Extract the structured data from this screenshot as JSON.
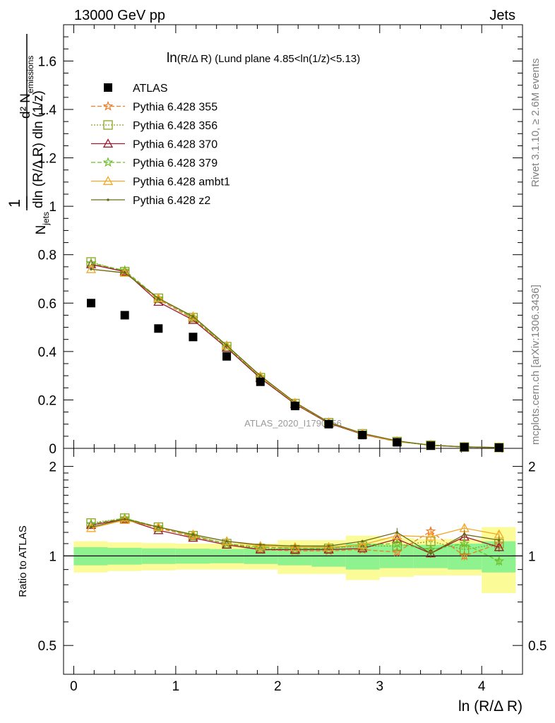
{
  "header": {
    "left": "13000 GeV pp",
    "right": "Jets"
  },
  "side_labels": {
    "rivet": "Rivet 3.1.10, ≥ 2.6M events",
    "mcplots": "mcplots.cern.ch [arXiv:1306.3436]"
  },
  "watermark": "ATLAS_2020_I1790256",
  "plot_title": {
    "main": "ln",
    "sub": "(R/Δ R)",
    "rest": " (Lund plane 4.85<ln(1/z)<5.13)"
  },
  "ylabel_main": {
    "frac_top": "1",
    "n_jets": "N",
    "n_jets_sub": "jets",
    "denom_rest": "dln (R/Δ R) dln (1/z)",
    "num_d2": "d² N",
    "num_sub": "emissions"
  },
  "ylabel_ratio": "Ratio to ATLAS",
  "xlabel": "ln (R/Δ R)",
  "colors": {
    "atlas": "#000000",
    "p355": "#f07c28",
    "p356": "#8aa522",
    "p370": "#9b1b30",
    "p379": "#6cbf2a",
    "ambt1": "#f5a623",
    "z2": "#6b6b14",
    "band_inner": "#8ef28e",
    "band_outer": "#fbfb98"
  },
  "chart_data": {
    "type": "scatter",
    "xlabel": "ln (R/Δ R)",
    "ylabel": "d²N_emissions / (N_jets dln(R/ΔR) dln(1/z))",
    "ratio_ylabel": "Ratio to ATLAS",
    "xlim": [
      -0.1,
      4.4
    ],
    "ylim": [
      0,
      1.75
    ],
    "ratio_ylim": [
      0.4,
      2.3
    ],
    "ratio_log": true,
    "x_ticks": [
      "0",
      "1",
      "2",
      "3",
      "4"
    ],
    "y_ticks": [
      "0",
      "0.2",
      "0.4",
      "0.6",
      "0.8",
      "1",
      "1.2",
      "1.4",
      "1.6"
    ],
    "ratio_ticks": [
      "0.5",
      "1",
      "2"
    ],
    "x": [
      0.17,
      0.5,
      0.83,
      1.17,
      1.5,
      1.83,
      2.17,
      2.5,
      2.83,
      3.17,
      3.5,
      3.83,
      4.17
    ],
    "bin_edges": [
      0,
      0.333,
      0.667,
      1.0,
      1.333,
      1.667,
      2.0,
      2.333,
      2.667,
      3.0,
      3.333,
      3.667,
      4.0,
      4.333
    ],
    "legend_position": "upper-left",
    "atlas": {
      "name": "ATLAS",
      "values": [
        0.6,
        0.55,
        0.495,
        0.46,
        0.38,
        0.275,
        0.175,
        0.1,
        0.055,
        0.025,
        0.011,
        0.005,
        0.003
      ],
      "band_inner": [
        0.07,
        0.065,
        0.06,
        0.058,
        0.055,
        0.06,
        0.07,
        0.08,
        0.1,
        0.09,
        0.09,
        0.1,
        0.12
      ],
      "band_outer": [
        0.12,
        0.11,
        0.105,
        0.1,
        0.1,
        0.1,
        0.13,
        0.13,
        0.17,
        0.15,
        0.14,
        0.14,
        0.25
      ]
    },
    "series": [
      {
        "name": "Pythia 6.428 355",
        "color_key": "p355",
        "marker": "star",
        "dash": "6,3",
        "values": [
          0.765,
          0.73,
          0.615,
          0.535,
          0.42,
          0.29,
          0.183,
          0.104,
          0.058,
          0.027,
          0.014,
          0.005,
          0.0033
        ],
        "ratio": [
          1.28,
          1.33,
          1.24,
          1.16,
          1.1,
          1.05,
          1.04,
          1.04,
          1.05,
          1.03,
          1.21,
          1.0,
          1.1
        ]
      },
      {
        "name": "Pythia 6.428 356",
        "color_key": "p356",
        "marker": "square",
        "dash": "2,2",
        "values": [
          0.77,
          0.73,
          0.62,
          0.54,
          0.42,
          0.292,
          0.185,
          0.106,
          0.06,
          0.028,
          0.013,
          0.0053,
          0.0033
        ],
        "ratio": [
          1.29,
          1.34,
          1.25,
          1.17,
          1.1,
          1.06,
          1.05,
          1.06,
          1.08,
          1.08,
          1.12,
          1.05,
          1.1
        ]
      },
      {
        "name": "Pythia 6.428 370",
        "color_key": "p370",
        "marker": "triangle",
        "dash": "",
        "values": [
          0.76,
          0.73,
          0.605,
          0.53,
          0.415,
          0.29,
          0.183,
          0.104,
          0.058,
          0.029,
          0.0135,
          0.006,
          0.0033
        ],
        "ratio": [
          1.27,
          1.33,
          1.22,
          1.15,
          1.09,
          1.05,
          1.05,
          1.05,
          1.06,
          1.14,
          1.02,
          1.16,
          1.07
        ]
      },
      {
        "name": "Pythia 6.428 379",
        "color_key": "p379",
        "marker": "star",
        "dash": "6,3",
        "values": [
          0.765,
          0.735,
          0.62,
          0.54,
          0.42,
          0.295,
          0.186,
          0.106,
          0.06,
          0.028,
          0.013,
          0.0055,
          0.003
        ],
        "ratio": [
          1.28,
          1.34,
          1.25,
          1.17,
          1.1,
          1.07,
          1.06,
          1.06,
          1.09,
          1.1,
          1.05,
          1.1,
          0.96
        ]
      },
      {
        "name": "Pythia 6.428 ambt1",
        "color_key": "ambt1",
        "marker": "triangle",
        "dash": "",
        "values": [
          0.74,
          0.725,
          0.62,
          0.545,
          0.425,
          0.298,
          0.188,
          0.107,
          0.06,
          0.029,
          0.0135,
          0.0063,
          0.0037
        ],
        "ratio": [
          1.24,
          1.32,
          1.25,
          1.18,
          1.12,
          1.08,
          1.07,
          1.07,
          1.09,
          1.17,
          1.16,
          1.24,
          1.18
        ]
      },
      {
        "name": "Pythia 6.428 z2",
        "color_key": "z2",
        "marker": "dot",
        "dash": "",
        "values": [
          0.74,
          0.725,
          0.62,
          0.545,
          0.425,
          0.3,
          0.19,
          0.108,
          0.062,
          0.031,
          0.0125,
          0.006,
          0.0035
        ],
        "ratio": [
          1.25,
          1.33,
          1.25,
          1.18,
          1.12,
          1.09,
          1.08,
          1.08,
          1.12,
          1.2,
          1.02,
          1.18,
          1.13
        ]
      }
    ]
  }
}
